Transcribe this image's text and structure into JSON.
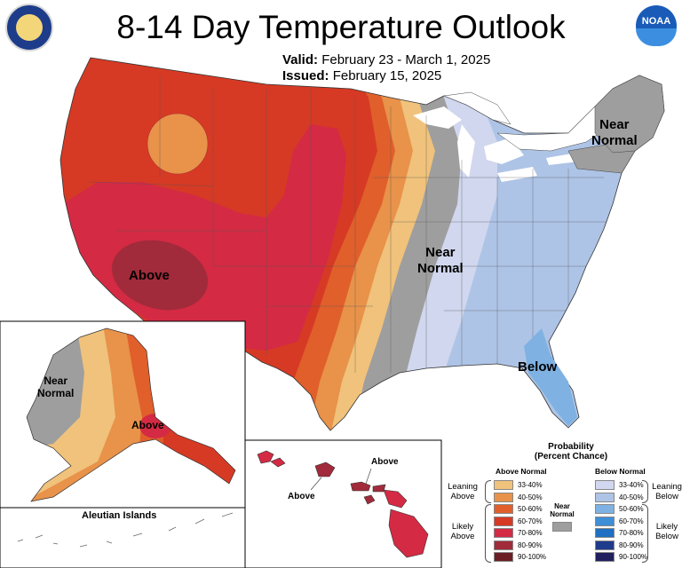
{
  "header": {
    "title": "8-14 Day Temperature Outlook",
    "valid_label": "Valid:",
    "valid_value": "February 23 - March 1, 2025",
    "issued_label": "Issued:",
    "issued_value": "February 15, 2025"
  },
  "logos": {
    "left": "Department of Commerce seal",
    "right_text": "NOAA"
  },
  "map_labels": {
    "conus_above": "Above",
    "conus_near_central_1": "Near",
    "conus_near_central_2": "Normal",
    "conus_near_ne_1": "Near",
    "conus_near_ne_2": "Normal",
    "conus_below": "Below",
    "ak_near_1": "Near",
    "ak_near_2": "Normal",
    "ak_above": "Above",
    "aleutian": "Aleutian Islands",
    "hi_above_1": "Above",
    "hi_above_2": "Above"
  },
  "legend": {
    "title_1": "Probability",
    "title_2": "(Percent Chance)",
    "above_header": "Above Normal",
    "below_header": "Below Normal",
    "near_header_1": "Near",
    "near_header_2": "Normal",
    "leaning_above_1": "Leaning",
    "leaning_above_2": "Above",
    "likely_above_1": "Likely",
    "likely_above_2": "Above",
    "leaning_below_1": "Leaning",
    "leaning_below_2": "Below",
    "likely_below_1": "Likely",
    "likely_below_2": "Below",
    "bins": [
      "33-40%",
      "40-50%",
      "50-60%",
      "60-70%",
      "70-80%",
      "80-90%",
      "90-100%"
    ],
    "above_colors": [
      "#f0c27b",
      "#e8924a",
      "#e05f2b",
      "#d63a24",
      "#d42a44",
      "#a12b3a",
      "#6b1e24"
    ],
    "below_colors": [
      "#d0d7ee",
      "#aec4e6",
      "#7fb1e2",
      "#3f8fd6",
      "#1f6fc2",
      "#1f3b8c",
      "#20205e"
    ],
    "near_color": "#9e9e9e"
  }
}
